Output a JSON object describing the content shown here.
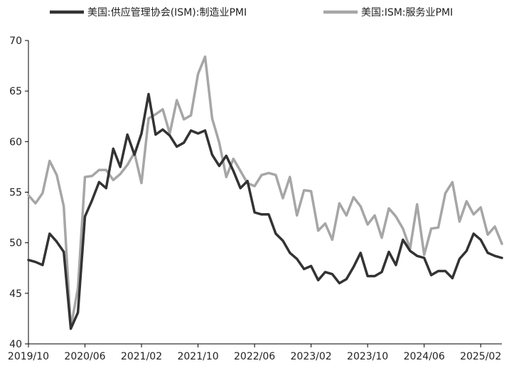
{
  "chart_data": {
    "type": "line",
    "title": "",
    "xlabel": "",
    "ylabel": "",
    "ylim": [
      40,
      70
    ],
    "yticks": [
      40,
      45,
      50,
      55,
      60,
      65,
      70
    ],
    "xtick_labels": [
      "2019/10",
      "2020/06",
      "2021/02",
      "2021/10",
      "2022/06",
      "2023/02",
      "2023/10",
      "2024/06",
      "2025/02"
    ],
    "x": [
      "2019/10",
      "2019/11",
      "2019/12",
      "2020/01",
      "2020/02",
      "2020/03",
      "2020/04",
      "2020/05",
      "2020/06",
      "2020/07",
      "2020/08",
      "2020/09",
      "2020/10",
      "2020/11",
      "2020/12",
      "2021/01",
      "2021/02",
      "2021/03",
      "2021/04",
      "2021/05",
      "2021/06",
      "2021/07",
      "2021/08",
      "2021/09",
      "2021/10",
      "2021/11",
      "2021/12",
      "2022/01",
      "2022/02",
      "2022/03",
      "2022/04",
      "2022/05",
      "2022/06",
      "2022/07",
      "2022/08",
      "2022/09",
      "2022/10",
      "2022/11",
      "2022/12",
      "2023/01",
      "2023/02",
      "2023/03",
      "2023/04",
      "2023/05",
      "2023/06",
      "2023/07",
      "2023/08",
      "2023/09",
      "2023/10",
      "2023/11",
      "2023/12",
      "2024/01",
      "2024/02",
      "2024/03",
      "2024/04",
      "2024/05",
      "2024/06",
      "2024/07",
      "2024/08",
      "2024/09",
      "2024/10",
      "2024/11",
      "2024/12",
      "2025/01",
      "2025/02",
      "2025/03",
      "2025/04",
      "2025/05"
    ],
    "grid": false,
    "legend_position": "top",
    "series": [
      {
        "name": "美国:供应管理协会(ISM):制造业PMI",
        "color": "#333333",
        "values": [
          48.3,
          48.1,
          47.8,
          50.9,
          50.1,
          49.1,
          41.5,
          43.1,
          52.6,
          54.2,
          56.0,
          55.4,
          59.3,
          57.5,
          60.7,
          58.7,
          60.8,
          64.7,
          60.7,
          61.2,
          60.6,
          59.5,
          59.9,
          61.1,
          60.8,
          61.1,
          58.7,
          57.6,
          58.6,
          57.1,
          55.4,
          56.1,
          53.0,
          52.8,
          52.8,
          50.9,
          50.2,
          49.0,
          48.4,
          47.4,
          47.7,
          46.3,
          47.1,
          46.9,
          46.0,
          46.4,
          47.6,
          49.0,
          46.7,
          46.7,
          47.1,
          49.1,
          47.8,
          50.3,
          49.2,
          48.7,
          48.5,
          46.8,
          47.2,
          47.2,
          46.5,
          48.4,
          49.2,
          50.9,
          50.3,
          49.0,
          48.7,
          48.5
        ]
      },
      {
        "name": "美国:ISM:服务业PMI",
        "color": "#a6a6a6",
        "values": [
          54.7,
          53.9,
          54.9,
          58.1,
          56.7,
          53.6,
          41.6,
          45.5,
          56.5,
          56.6,
          57.2,
          57.2,
          56.2,
          56.8,
          57.7,
          58.9,
          55.9,
          62.3,
          62.7,
          63.2,
          60.8,
          64.1,
          62.2,
          62.6,
          66.7,
          68.4,
          62.3,
          59.9,
          56.5,
          58.3,
          57.1,
          55.9,
          55.6,
          56.7,
          56.9,
          56.7,
          54.4,
          56.5,
          52.7,
          55.2,
          55.1,
          51.2,
          51.9,
          50.3,
          53.9,
          52.7,
          54.5,
          53.6,
          51.8,
          52.7,
          50.5,
          53.4,
          52.6,
          51.4,
          49.4,
          53.8,
          48.8,
          51.4,
          51.5,
          54.9,
          56.0,
          52.1,
          54.1,
          52.8,
          53.5,
          50.8,
          51.6,
          49.9
        ]
      }
    ]
  }
}
